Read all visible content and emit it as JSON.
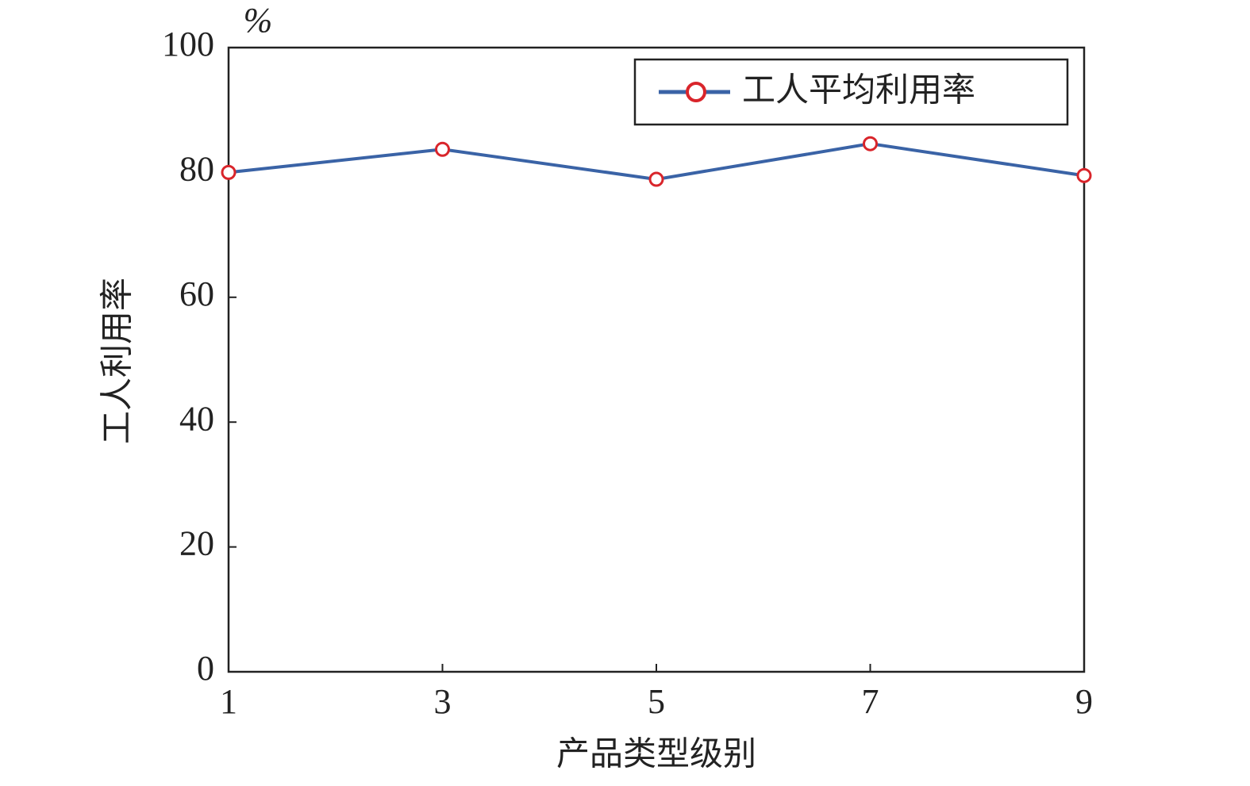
{
  "chart_data": {
    "type": "line",
    "unit_label": "%",
    "y_label": "工人利用率",
    "x_label": "产品类型级别",
    "x": [
      1,
      3,
      5,
      7,
      9
    ],
    "series": [
      {
        "name": "工人平均利用率",
        "color": "#3a63a6",
        "marker_color": "#d9252b",
        "values": [
          80,
          83.7,
          78.9,
          84.6,
          79.5
        ]
      }
    ],
    "xlim": [
      1,
      9
    ],
    "xticks": [
      1,
      3,
      5,
      7,
      9
    ],
    "ylim": [
      0,
      100
    ],
    "yticks": [
      0,
      20,
      40,
      60,
      80,
      100
    ],
    "legend": "upper-right",
    "grid": false
  }
}
